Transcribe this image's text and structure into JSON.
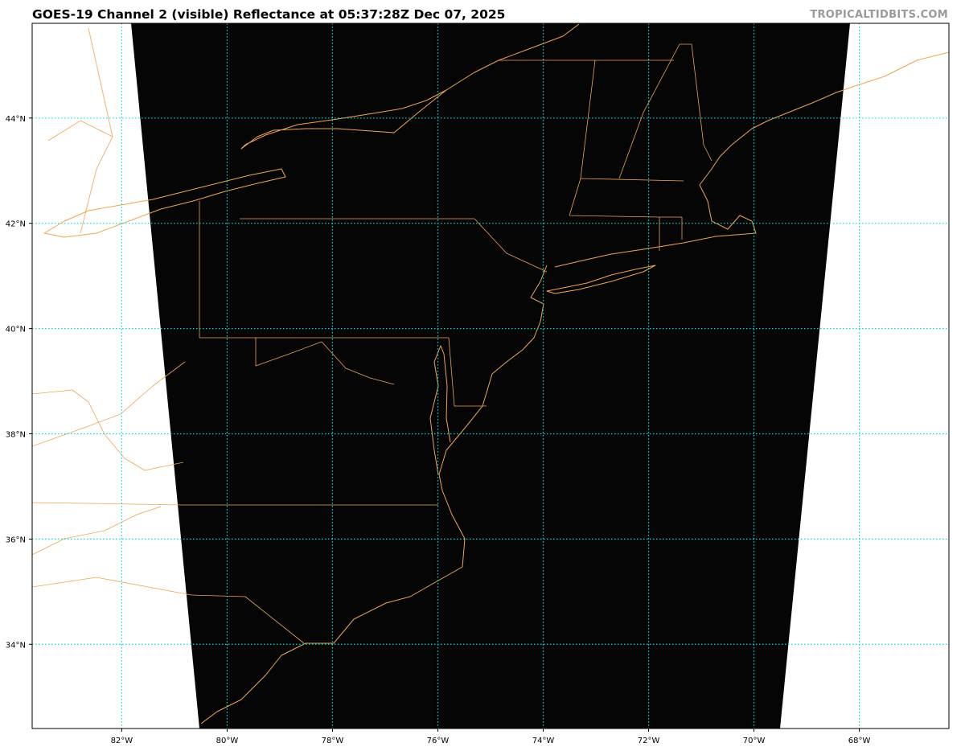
{
  "title": "GOES-19 Channel 2 (visible) Reflectance at 05:37:28Z Dec 07, 2025",
  "watermark": "TROPICALTIDBITS.COM",
  "map": {
    "projection": "plate-carree",
    "lon_range": [
      -83.7,
      -66.3
    ],
    "lat_range": [
      32.4,
      45.8
    ],
    "lon_ticks": [
      {
        "value": -82,
        "label": "82°W"
      },
      {
        "value": -80,
        "label": "80°W"
      },
      {
        "value": -78,
        "label": "78°W"
      },
      {
        "value": -76,
        "label": "76°W"
      },
      {
        "value": -74,
        "label": "74°W"
      },
      {
        "value": -72,
        "label": "72°W"
      },
      {
        "value": -70,
        "label": "70°W"
      },
      {
        "value": -68,
        "label": "68°W"
      }
    ],
    "lat_ticks": [
      {
        "value": 34,
        "label": "34°N"
      },
      {
        "value": 36,
        "label": "36°N"
      },
      {
        "value": 38,
        "label": "38°N"
      },
      {
        "value": 40,
        "label": "40°N"
      },
      {
        "value": 42,
        "label": "42°N"
      },
      {
        "value": 44,
        "label": "44°N"
      }
    ],
    "colors": {
      "imagery": "#050505",
      "no_data": "#ffffff",
      "coastlines": "#f0a550",
      "gridlines": "#00e0e0"
    }
  }
}
